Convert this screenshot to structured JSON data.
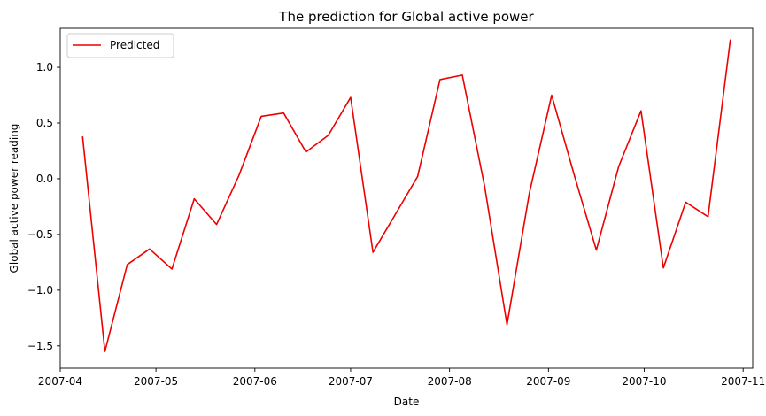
{
  "chart_data": {
    "type": "line",
    "title": "The prediction for Global active power",
    "xlabel": "Date",
    "ylabel": "Global active power reading",
    "x_ticks": [
      "2007-04",
      "2007-05",
      "2007-06",
      "2007-07",
      "2007-08",
      "2007-09",
      "2007-10",
      "2007-11"
    ],
    "y_ticks": [
      -1.5,
      -1.0,
      -0.5,
      0.0,
      0.5,
      1.0
    ],
    "xlim": [
      "2007-04-01",
      "2007-11-04"
    ],
    "ylim": [
      -1.7,
      1.35
    ],
    "grid": false,
    "legend": {
      "placement": "top-left",
      "entries": [
        "Predicted"
      ]
    },
    "series": [
      {
        "name": "Predicted",
        "color": "#ee0000",
        "x": [
          "2007-04-08",
          "2007-04-15",
          "2007-04-22",
          "2007-04-29",
          "2007-05-06",
          "2007-05-13",
          "2007-05-20",
          "2007-05-27",
          "2007-06-03",
          "2007-06-10",
          "2007-06-17",
          "2007-06-24",
          "2007-07-01",
          "2007-07-08",
          "2007-07-15",
          "2007-07-22",
          "2007-07-29",
          "2007-08-05",
          "2007-08-12",
          "2007-08-19",
          "2007-08-26",
          "2007-09-02",
          "2007-09-09",
          "2007-09-16",
          "2007-09-23",
          "2007-09-30",
          "2007-10-07",
          "2007-10-14",
          "2007-10-21",
          "2007-10-28"
        ],
        "values": [
          0.38,
          -1.55,
          -0.77,
          -0.63,
          -0.81,
          -0.18,
          -0.41,
          0.03,
          0.56,
          0.59,
          0.24,
          0.39,
          0.73,
          -0.66,
          -0.32,
          0.02,
          0.89,
          0.93,
          -0.07,
          -1.31,
          -0.13,
          0.75,
          0.04,
          -0.64,
          0.11,
          0.61,
          -0.8,
          -0.21,
          -0.34,
          1.25
        ]
      }
    ]
  }
}
